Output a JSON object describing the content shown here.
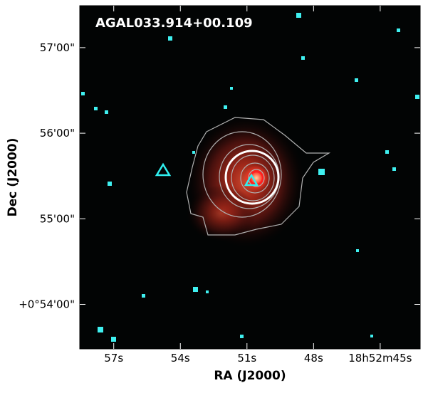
{
  "chart_data": {
    "type": "image",
    "title": "AGAL033.914+00.109",
    "x_label": "RA (J2000)",
    "y_label": "Dec (J2000)",
    "xlim": [
      58.53,
      43.2
    ],
    "ylim": [
      53.48,
      57.49
    ],
    "xticks": [
      {
        "value": 57,
        "label": "57s"
      },
      {
        "value": 54,
        "label": "54s"
      },
      {
        "value": 51,
        "label": "51s"
      },
      {
        "value": 48,
        "label": "48s"
      },
      {
        "value": 45,
        "label": "18h52m45s"
      }
    ],
    "yticks": [
      {
        "value": 57,
        "label": "57'00\""
      },
      {
        "value": 56,
        "label": "56'00\""
      },
      {
        "value": 55,
        "label": "55'00\""
      },
      {
        "value": 54,
        "label": "+0°54'00\""
      }
    ]
  }
}
